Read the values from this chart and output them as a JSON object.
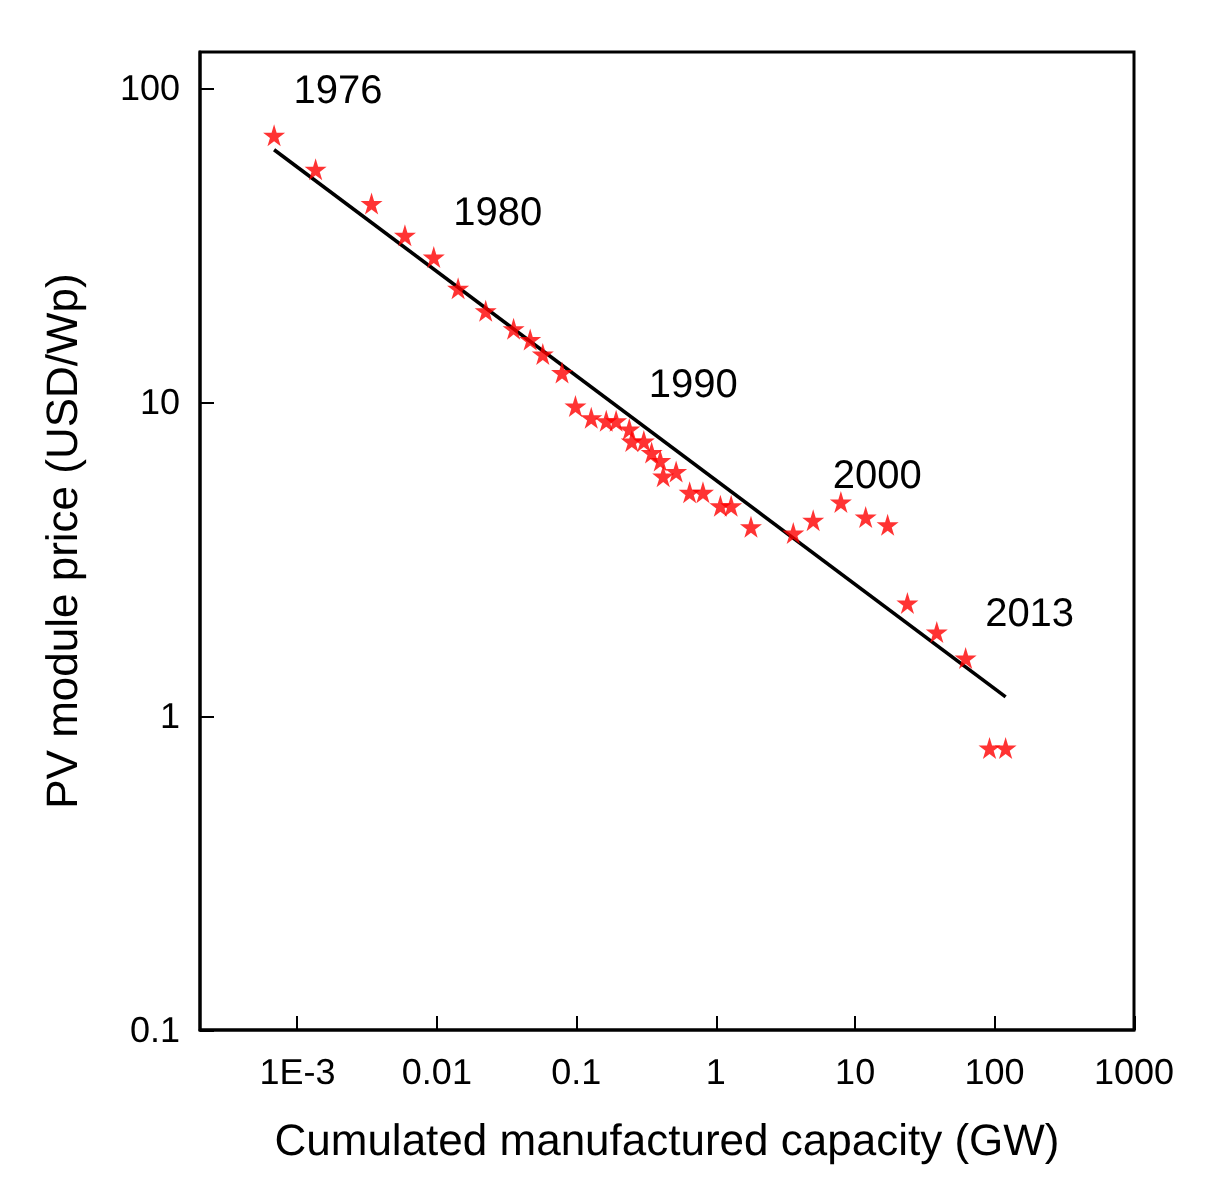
{
  "chart_data": {
    "type": "scatter",
    "xlabel": "Cumulated manufactured capacity (GW)",
    "ylabel": "PV module price (USD/Wp)",
    "log": "xy",
    "grid": false,
    "xlim": [
      0.0002,
      1000
    ],
    "xticks": [
      {
        "value": 0.001,
        "label": "1E-3"
      },
      0.01,
      0.1,
      1,
      10,
      100,
      1000
    ],
    "ylim": [
      0.1,
      130
    ],
    "yticks": [
      0.1,
      1,
      10,
      100
    ],
    "series": [
      {
        "color": "#ff0000",
        "marker": "star",
        "x": [
          0.00068,
          0.00135,
          0.0034,
          0.0059,
          0.0095,
          0.0142,
          0.0224,
          0.0355,
          0.0467,
          0.0575,
          0.079,
          0.0986,
          0.128,
          0.164,
          0.193,
          0.24,
          0.25,
          0.305,
          0.347,
          0.4,
          0.42,
          0.52,
          0.65,
          0.81,
          1.08,
          1.29,
          1.79,
          3.6,
          5.0,
          7.9,
          11.9,
          17.1,
          23.7,
          38.5,
          62,
          92,
          120
        ],
        "values": [
          70.6,
          55,
          42.8,
          33.9,
          28.9,
          23,
          19.5,
          17.1,
          15.8,
          14.2,
          12.4,
          9.7,
          8.9,
          8.7,
          8.7,
          8.2,
          7.5,
          7.5,
          6.9,
          6.5,
          5.8,
          6.0,
          5.15,
          5.15,
          4.67,
          4.67,
          4.0,
          3.82,
          4.2,
          4.8,
          4.3,
          4.06,
          2.29,
          1.85,
          1.53,
          0.79,
          0.79
        ]
      },
      {
        "type": "line",
        "color": "#000000",
        "line_style": "solid",
        "x": [
          0.00068,
          120
        ],
        "values": [
          63.5,
          1.15
        ]
      }
    ],
    "annotations": [
      {
        "text": "1976",
        "x": 0.00068,
        "y": 70.6
      },
      {
        "text": "1980",
        "x": 0.0095,
        "y": 28.9
      },
      {
        "text": "1990",
        "x": 0.24,
        "y": 8.2
      },
      {
        "text": "2000",
        "x": 5.0,
        "y": 4.2
      },
      {
        "text": "2013",
        "x": 62,
        "y": 1.53
      }
    ]
  }
}
